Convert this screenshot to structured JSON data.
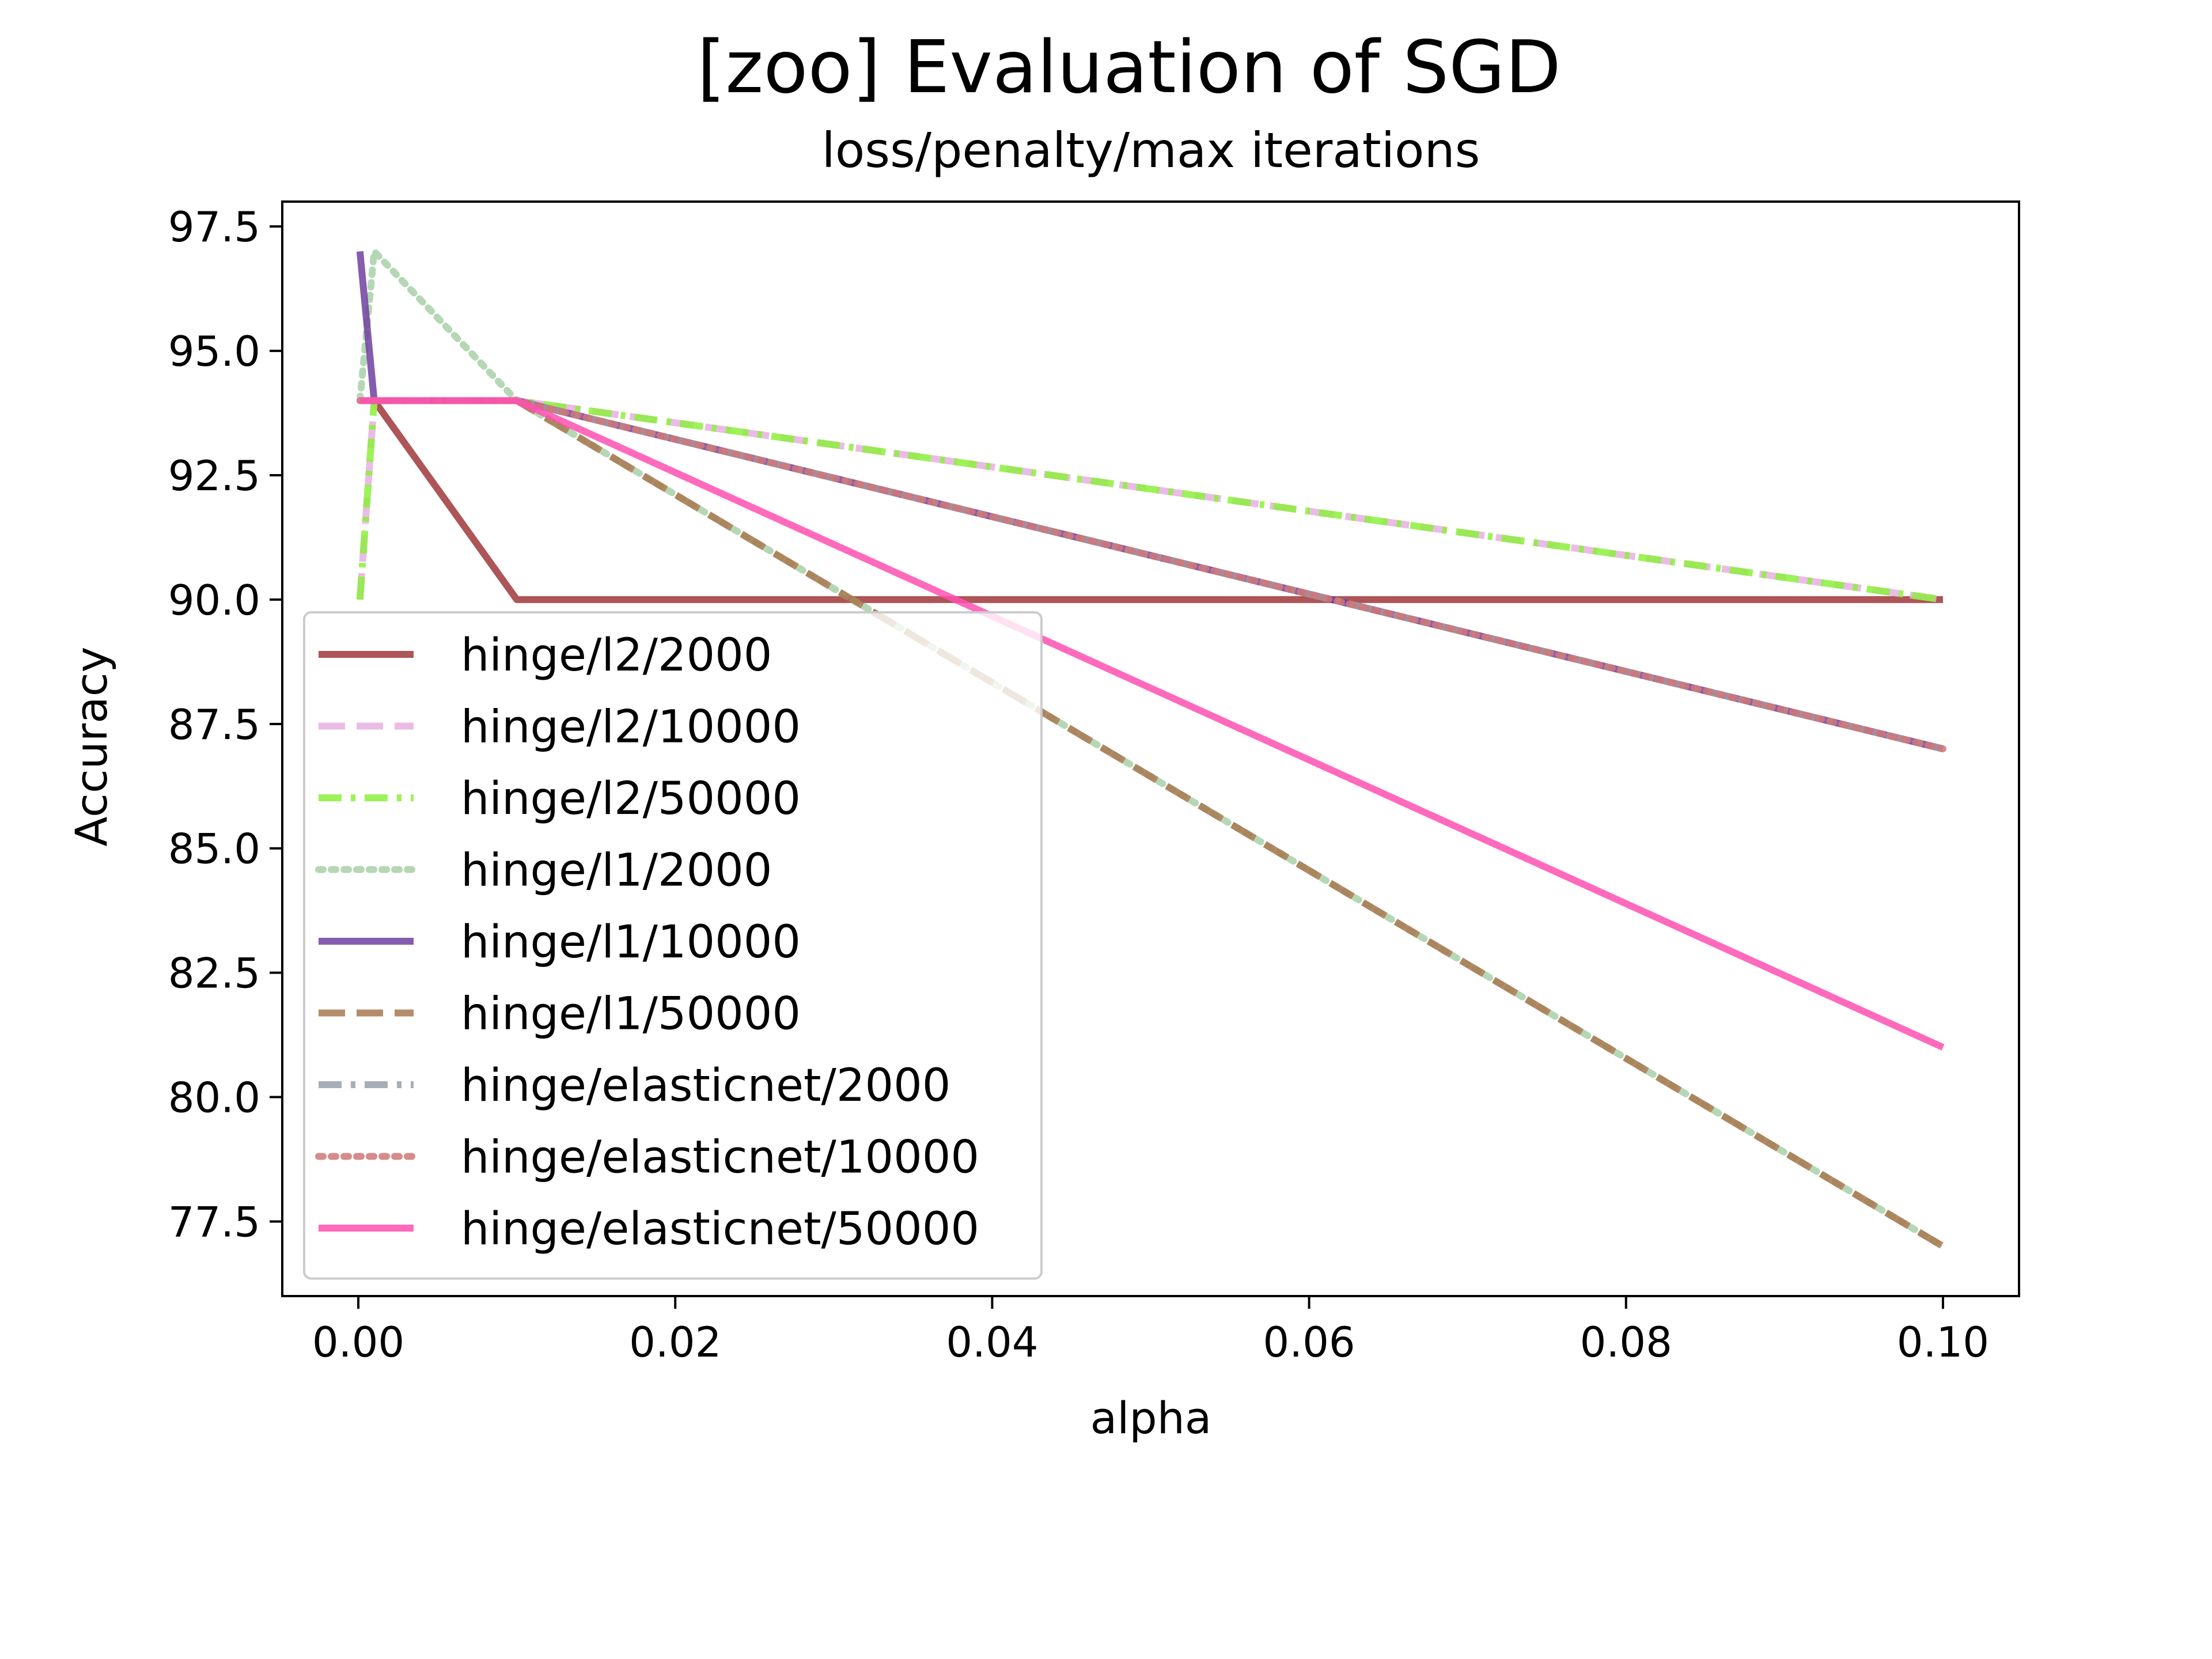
{
  "chart_data": {
    "type": "line",
    "title": "[zoo] Evaluation of SGD",
    "subtitle": "loss/penalty/max iterations",
    "xlabel": "alpha",
    "ylabel": "Accuracy",
    "xlim": [
      -0.0048,
      0.1048
    ],
    "ylim": [
      76.0,
      98.0
    ],
    "x_ticks": [
      "0.00",
      "0.02",
      "0.04",
      "0.06",
      "0.08",
      "0.10"
    ],
    "y_ticks": [
      "77.5",
      "80.0",
      "82.5",
      "85.0",
      "87.5",
      "90.0",
      "92.5",
      "95.0",
      "97.5"
    ],
    "grid": false,
    "legend_position": "lower-left",
    "series": [
      {
        "name": "hinge/l2/2000",
        "x": [
          0.0001,
          0.001,
          0.01,
          0.1
        ],
        "values": [
          94.0,
          94.0,
          90.0,
          90.0
        ],
        "color": "#a0373a",
        "dash": "solid"
      },
      {
        "name": "hinge/l2/10000",
        "x": [
          0.0001,
          0.001,
          0.01,
          0.1
        ],
        "values": [
          90.0,
          94.0,
          94.0,
          90.0
        ],
        "color": "#e6b0e0",
        "dash": "dashed"
      },
      {
        "name": "hinge/l2/50000",
        "x": [
          0.0001,
          0.001,
          0.01,
          0.1
        ],
        "values": [
          90.0,
          94.0,
          94.0,
          90.0
        ],
        "color": "#8cf03c",
        "dash": "dashdot"
      },
      {
        "name": "hinge/l1/2000",
        "x": [
          0.0001,
          0.001,
          0.01,
          0.1
        ],
        "values": [
          94.0,
          97.0,
          94.0,
          77.0
        ],
        "color": "#a8d0a8",
        "dash": "dotted"
      },
      {
        "name": "hinge/l1/10000",
        "x": [
          0.0001,
          0.001,
          0.01,
          0.1
        ],
        "values": [
          97.0,
          94.0,
          94.0,
          87.0
        ],
        "color": "#7040a0",
        "dash": "solid"
      },
      {
        "name": "hinge/l1/50000",
        "x": [
          0.0001,
          0.001,
          0.01,
          0.1
        ],
        "values": [
          94.0,
          94.0,
          94.0,
          77.0
        ],
        "color": "#a87850",
        "dash": "dashed"
      },
      {
        "name": "hinge/elasticnet/2000",
        "x": [
          0.0001,
          0.001,
          0.01,
          0.1
        ],
        "values": [
          94.0,
          94.0,
          94.0,
          87.0
        ],
        "color": "#98a0ac",
        "dash": "dashdot"
      },
      {
        "name": "hinge/elasticnet/10000",
        "x": [
          0.0001,
          0.001,
          0.01,
          0.1
        ],
        "values": [
          94.0,
          94.0,
          94.0,
          87.0
        ],
        "color": "#d07878",
        "dash": "dotted"
      },
      {
        "name": "hinge/elasticnet/50000",
        "x": [
          0.0001,
          0.001,
          0.01,
          0.1
        ],
        "values": [
          94.0,
          94.0,
          94.0,
          81.0
        ],
        "color": "#ff50b0",
        "dash": "solid"
      }
    ]
  }
}
